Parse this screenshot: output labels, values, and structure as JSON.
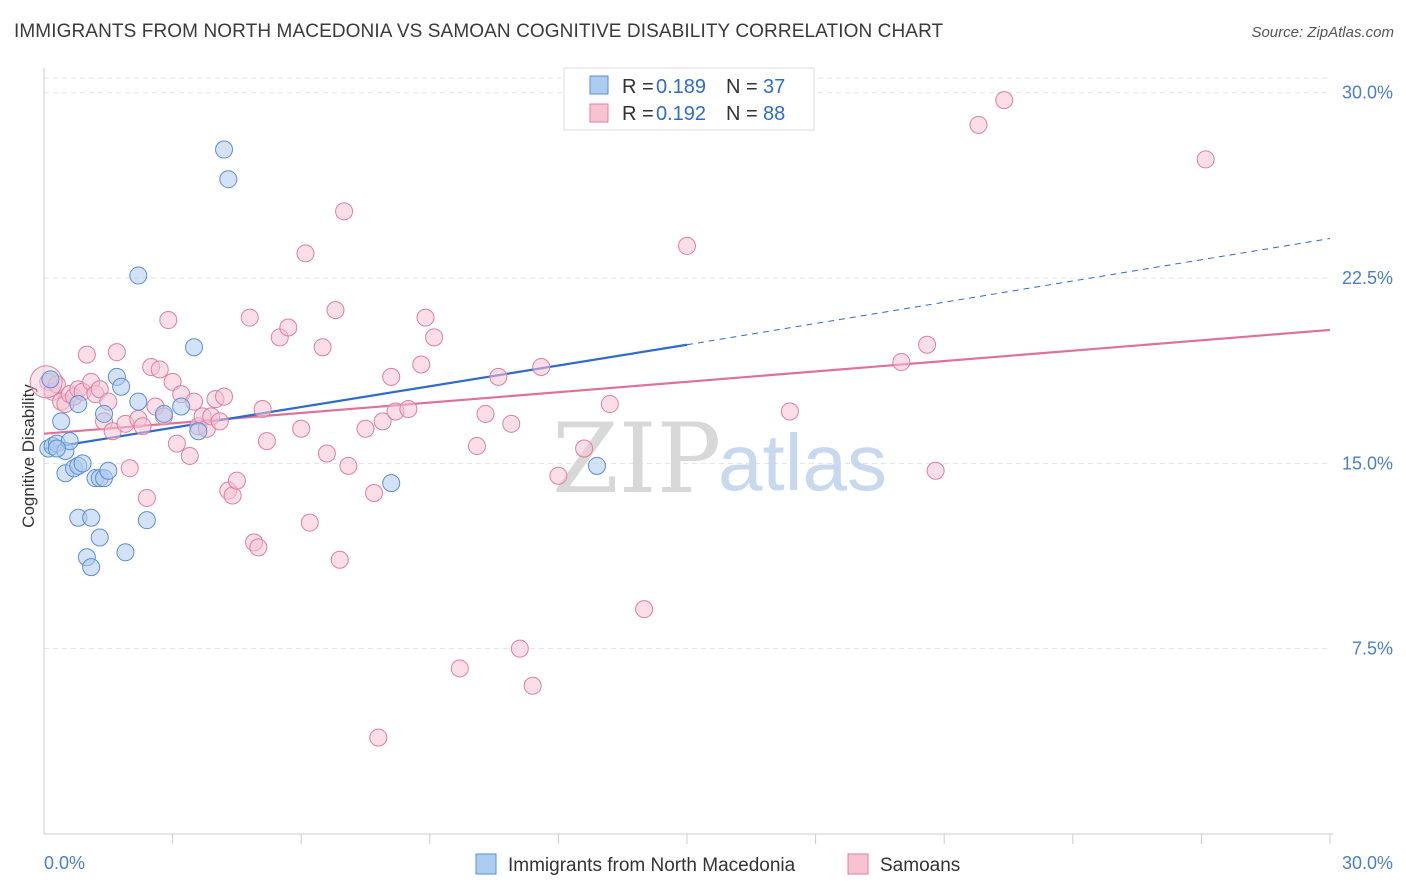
{
  "title": "IMMIGRANTS FROM NORTH MACEDONIA VS SAMOAN COGNITIVE DISABILITY CORRELATION CHART",
  "source": "Source: ZipAtlas.com",
  "watermark": {
    "zip": "ZIP",
    "atlas": "atlas"
  },
  "colors": {
    "blue_fill": "#aecbf0",
    "blue_stroke": "#5b8fd6",
    "blue_line": "#2f6bc9",
    "pink_fill": "#f7c3d3",
    "pink_stroke": "#e07f9f",
    "pink_line": "#e0709a",
    "grid": "#e3e3e3",
    "axis_text": "#4a7fc8"
  },
  "legend": {
    "series": [
      {
        "r_label": "R = ",
        "r_value": "0.189",
        "n_label": "N = ",
        "n_value": "37"
      },
      {
        "r_label": "R = ",
        "r_value": "0.192",
        "n_label": "N = ",
        "n_value": "88"
      }
    ]
  },
  "chart_data": {
    "type": "scatter",
    "title": "IMMIGRANTS FROM NORTH MACEDONIA VS SAMOAN COGNITIVE DISABILITY CORRELATION CHART",
    "xlabel": "",
    "ylabel": "Cognitive Disability",
    "xlim": [
      0,
      30
    ],
    "ylim": [
      0,
      31
    ],
    "x_tick_labels": [
      "0.0%",
      "30.0%"
    ],
    "y_ticks": [
      7.5,
      15.0,
      22.5,
      30.0
    ],
    "y_tick_labels": [
      "7.5%",
      "15.0%",
      "22.5%",
      "30.0%"
    ],
    "grid": true,
    "series": [
      {
        "name": "Immigrants from North Macedonia",
        "color": "blue",
        "trend": {
          "x0": 0,
          "y0": 15.6,
          "x1": 15,
          "y1": 19.8,
          "dash_x1": 30,
          "dash_y1": 24.1
        },
        "points": [
          [
            0.1,
            15.6
          ],
          [
            0.2,
            15.7
          ],
          [
            0.3,
            15.8
          ],
          [
            0.4,
            16.7
          ],
          [
            0.5,
            15.5
          ],
          [
            0.5,
            14.6
          ],
          [
            0.6,
            15.9
          ],
          [
            0.7,
            14.8
          ],
          [
            0.8,
            14.9
          ],
          [
            0.8,
            17.4
          ],
          [
            0.8,
            12.8
          ],
          [
            0.9,
            15.0
          ],
          [
            1.0,
            11.2
          ],
          [
            1.1,
            10.8
          ],
          [
            1.1,
            12.8
          ],
          [
            1.2,
            14.4
          ],
          [
            1.3,
            14.4
          ],
          [
            1.3,
            12.0
          ],
          [
            1.4,
            14.4
          ],
          [
            1.5,
            14.7
          ],
          [
            1.4,
            17.0
          ],
          [
            1.7,
            18.5
          ],
          [
            1.8,
            18.1
          ],
          [
            1.9,
            11.4
          ],
          [
            2.2,
            22.6
          ],
          [
            2.2,
            17.5
          ],
          [
            2.4,
            12.7
          ],
          [
            2.8,
            17.0
          ],
          [
            3.2,
            17.3
          ],
          [
            3.5,
            19.7
          ],
          [
            3.6,
            16.3
          ],
          [
            4.2,
            27.7
          ],
          [
            4.3,
            26.5
          ],
          [
            8.1,
            14.2
          ],
          [
            12.9,
            14.9
          ],
          [
            0.15,
            18.4
          ],
          [
            0.3,
            15.6
          ]
        ]
      },
      {
        "name": "Samoans",
        "color": "pink",
        "trend": {
          "x0": 0,
          "y0": 16.2,
          "x1": 30,
          "y1": 20.4
        },
        "points": [
          [
            0.1,
            18.3
          ],
          [
            0.2,
            17.9
          ],
          [
            0.3,
            18.2
          ],
          [
            0.4,
            17.5
          ],
          [
            0.5,
            17.4
          ],
          [
            0.6,
            17.8
          ],
          [
            0.7,
            17.7
          ],
          [
            0.8,
            18.0
          ],
          [
            0.9,
            17.9
          ],
          [
            1.0,
            19.4
          ],
          [
            1.1,
            18.3
          ],
          [
            1.2,
            17.8
          ],
          [
            1.3,
            18.0
          ],
          [
            1.4,
            16.7
          ],
          [
            1.5,
            17.5
          ],
          [
            1.6,
            16.3
          ],
          [
            1.7,
            19.5
          ],
          [
            1.9,
            16.6
          ],
          [
            2.0,
            14.8
          ],
          [
            2.2,
            16.8
          ],
          [
            2.3,
            16.5
          ],
          [
            2.4,
            13.6
          ],
          [
            2.5,
            18.9
          ],
          [
            2.6,
            17.3
          ],
          [
            2.7,
            18.8
          ],
          [
            2.8,
            16.9
          ],
          [
            2.9,
            20.8
          ],
          [
            3.0,
            18.3
          ],
          [
            3.1,
            15.8
          ],
          [
            3.2,
            17.8
          ],
          [
            3.4,
            15.3
          ],
          [
            3.5,
            17.5
          ],
          [
            3.6,
            16.5
          ],
          [
            3.7,
            16.9
          ],
          [
            3.8,
            16.4
          ],
          [
            3.9,
            16.9
          ],
          [
            4.0,
            17.6
          ],
          [
            4.1,
            16.7
          ],
          [
            4.2,
            17.7
          ],
          [
            4.3,
            13.9
          ],
          [
            4.4,
            13.7
          ],
          [
            4.5,
            14.3
          ],
          [
            4.8,
            20.9
          ],
          [
            4.9,
            11.8
          ],
          [
            5.0,
            11.6
          ],
          [
            5.1,
            17.2
          ],
          [
            5.2,
            15.9
          ],
          [
            5.5,
            20.1
          ],
          [
            5.7,
            20.5
          ],
          [
            6.0,
            16.4
          ],
          [
            6.1,
            23.5
          ],
          [
            6.2,
            12.6
          ],
          [
            6.5,
            19.7
          ],
          [
            6.6,
            15.4
          ],
          [
            6.8,
            21.2
          ],
          [
            6.9,
            11.1
          ],
          [
            7.0,
            25.2
          ],
          [
            7.1,
            14.9
          ],
          [
            7.5,
            16.4
          ],
          [
            7.7,
            13.8
          ],
          [
            7.8,
            3.9
          ],
          [
            7.9,
            16.7
          ],
          [
            8.1,
            18.5
          ],
          [
            8.2,
            17.1
          ],
          [
            8.5,
            17.2
          ],
          [
            8.8,
            19.0
          ],
          [
            8.9,
            20.9
          ],
          [
            9.1,
            20.1
          ],
          [
            9.7,
            6.7
          ],
          [
            10.1,
            15.7
          ],
          [
            10.3,
            17.0
          ],
          [
            10.6,
            18.5
          ],
          [
            10.9,
            16.6
          ],
          [
            11.1,
            7.5
          ],
          [
            11.4,
            6.0
          ],
          [
            11.6,
            18.9
          ],
          [
            12.0,
            14.5
          ],
          [
            12.6,
            15.6
          ],
          [
            13.2,
            17.4
          ],
          [
            14.0,
            9.1
          ],
          [
            15.0,
            23.8
          ],
          [
            17.4,
            17.1
          ],
          [
            20.0,
            19.1
          ],
          [
            20.6,
            19.8
          ],
          [
            20.8,
            14.7
          ],
          [
            21.8,
            28.7
          ],
          [
            22.4,
            29.7
          ],
          [
            27.1,
            27.3
          ]
        ]
      }
    ]
  }
}
